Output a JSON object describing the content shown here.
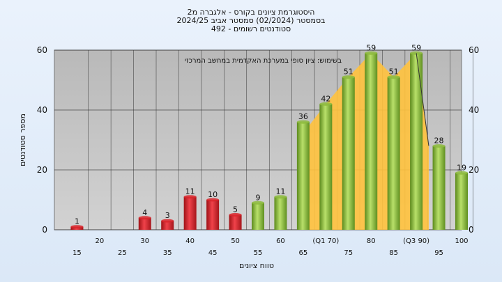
{
  "chart_data": {
    "type": "bar",
    "title_lines": [
      "היסטוגרמת ציונים בקורס - אלגברה מ2",
      "בסמסטר  (02/2024)  סמסטר אביב 2024/25",
      "492 - סטודנטים רשומים"
    ],
    "annotation": "בשימוש: ציון סופי במערכת האקדמית במחשב המרכזי",
    "xlabel": "טווח ציונים",
    "ylabel": "מספר סטודנטים",
    "ylim": [
      0,
      60
    ],
    "yticks": [
      0,
      20,
      40,
      60
    ],
    "categories": [
      "15",
      "20",
      "25",
      "30",
      "35",
      "40",
      "45",
      "50",
      "55",
      "60",
      "65",
      "70",
      "75",
      "80",
      "85",
      "90",
      "95",
      "100"
    ],
    "category_labels": [
      "15",
      "20",
      "25",
      "30",
      "35",
      "40",
      "45",
      "50",
      "55",
      "60",
      "65",
      "(Q1 70)",
      "75",
      "80",
      "85",
      "(Q3 90)",
      "95",
      "100"
    ],
    "values": [
      1,
      0,
      0,
      4,
      3,
      11,
      10,
      5,
      9,
      11,
      36,
      42,
      51,
      59,
      51,
      59,
      28,
      19
    ],
    "value_labels": [
      "1",
      "",
      "",
      "4",
      "3",
      "11",
      "10",
      "5",
      "9",
      "11",
      "36",
      "42",
      "51",
      "59",
      "51",
      "59",
      "28",
      "19"
    ],
    "bar_colors": [
      "#d9262b",
      "#d9262b",
      "#d9262b",
      "#d9262b",
      "#d9262b",
      "#d9262b",
      "#d9262b",
      "#d9262b",
      "#8dbb3d",
      "#8dbb3d",
      "#8dbb3d",
      "#8dbb3d",
      "#8dbb3d",
      "#8dbb3d",
      "#8dbb3d",
      "#8dbb3d",
      "#8dbb3d",
      "#8dbb3d"
    ],
    "quartile_band": {
      "from": "70",
      "to": "90",
      "color": "#ffc23d"
    },
    "grid": true,
    "plot_background": "#c0c0c0"
  }
}
